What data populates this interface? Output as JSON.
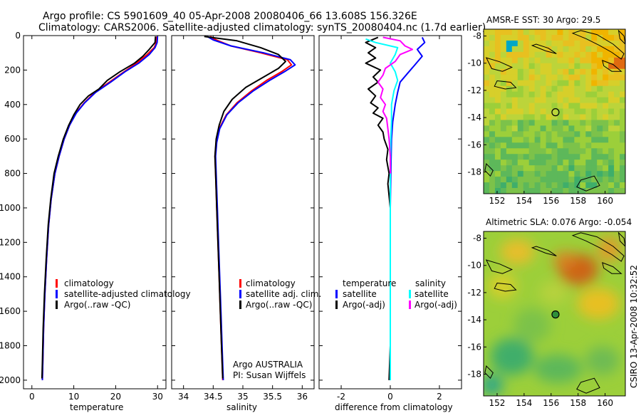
{
  "header": {
    "line1": "Argo profile: CS 5901609_40 05-Apr-2008 20080406_66 13.608S 156.326E",
    "line2": "Climatology: CARS2006. Satellite-adjusted climatology: synTS_20080404.nc (1.7d earlier)"
  },
  "side_text": "CSIRO 13-Apr-2008 10:32:52",
  "colors": {
    "clim": "#ff0000",
    "sat": "#0000ff",
    "argo": "#000000",
    "sal_sat": "#00ffff",
    "sal_argo": "#ff00ff"
  },
  "panels": {
    "temperature": {
      "xlabel": "temperature",
      "legend": [
        "climatology",
        "satellite-adjusted climatology",
        "Argo(..raw -QC)"
      ]
    },
    "salinity": {
      "xlabel": "salinity",
      "legend": [
        "climatology",
        "satellite adj. clim.",
        "Argo(..raw -QC)"
      ],
      "annot1": "Argo AUSTRALIA",
      "annot2": "PI: Susan Wijffels"
    },
    "difference": {
      "xlabel": "difference from climatology",
      "legend_head_left": "temperature",
      "legend_head_right": "salinity",
      "legend_left": [
        "satellite",
        "Argo(-adj)"
      ],
      "legend_right": [
        "satellite",
        "Argo(-adj)"
      ]
    }
  },
  "maps": {
    "sst": {
      "title": "AMSR-E SST: 30 Argo: 29.5"
    },
    "sla": {
      "title": "Altimetric SLA: 0.076 Argo: -0.054"
    },
    "float_position": {
      "lon": 156.326,
      "lat": -13.608
    }
  },
  "chart_data": [
    {
      "type": "line",
      "name": "temperature-profile",
      "xlabel": "temperature",
      "xlim": [
        -2,
        32
      ],
      "ylim": [
        2050,
        0
      ],
      "xticks": [
        0,
        10,
        20,
        30
      ],
      "yticks": [
        0,
        200,
        400,
        600,
        800,
        1000,
        1200,
        1400,
        1600,
        1800,
        2000
      ],
      "series": [
        {
          "name": "climatology",
          "color": "#ff0000",
          "points": [
            [
              29.8,
              5
            ],
            [
              29.7,
              40
            ],
            [
              29.2,
              70
            ],
            [
              27.5,
              110
            ],
            [
              25,
              160
            ],
            [
              22,
              210
            ],
            [
              18.5,
              270
            ],
            [
              15,
              330
            ],
            [
              12.5,
              390
            ],
            [
              10.5,
              450
            ],
            [
              9,
              520
            ],
            [
              7.7,
              600
            ],
            [
              6.5,
              700
            ],
            [
              5.5,
              800
            ],
            [
              4.6,
              950
            ],
            [
              4,
              1100
            ],
            [
              3.5,
              1300
            ],
            [
              3.1,
              1500
            ],
            [
              2.8,
              1700
            ],
            [
              2.6,
              1900
            ],
            [
              2.5,
              2000
            ]
          ]
        },
        {
          "name": "satellite-adjusted climatology",
          "color": "#0000ff",
          "points": [
            [
              30,
              5
            ],
            [
              29.9,
              40
            ],
            [
              29.4,
              70
            ],
            [
              28,
              110
            ],
            [
              25.5,
              160
            ],
            [
              22.2,
              210
            ],
            [
              18.8,
              270
            ],
            [
              15.2,
              330
            ],
            [
              12.6,
              390
            ],
            [
              10.6,
              450
            ],
            [
              9,
              520
            ],
            [
              7.7,
              600
            ],
            [
              6.5,
              700
            ],
            [
              5.5,
              800
            ],
            [
              4.6,
              950
            ],
            [
              4,
              1100
            ],
            [
              3.5,
              1300
            ],
            [
              3.1,
              1500
            ],
            [
              2.8,
              1700
            ],
            [
              2.6,
              1900
            ],
            [
              2.5,
              2000
            ]
          ]
        },
        {
          "name": "Argo(..raw -QC)",
          "color": "#000000",
          "points": [
            [
              29.5,
              5
            ],
            [
              29.4,
              40
            ],
            [
              28,
              80
            ],
            [
              26.5,
              120
            ],
            [
              24.5,
              160
            ],
            [
              21,
              210
            ],
            [
              18,
              260
            ],
            [
              16,
              310
            ],
            [
              13.5,
              350
            ],
            [
              11.5,
              400
            ],
            [
              10,
              460
            ],
            [
              8.8,
              520
            ],
            [
              7.5,
              600
            ],
            [
              6.3,
              700
            ],
            [
              5.3,
              800
            ],
            [
              4.5,
              950
            ],
            [
              3.9,
              1100
            ],
            [
              3.4,
              1300
            ],
            [
              3,
              1500
            ],
            [
              2.7,
              1700
            ],
            [
              2.5,
              1900
            ],
            [
              2.4,
              1990
            ]
          ]
        }
      ]
    },
    {
      "type": "line",
      "name": "salinity-profile",
      "xlabel": "salinity",
      "xlim": [
        33.8,
        36.2
      ],
      "ylim": [
        2050,
        0
      ],
      "xticks": [
        34,
        34.5,
        35,
        35.5,
        36
      ],
      "series": [
        {
          "name": "climatology",
          "color": "#ff0000",
          "points": [
            [
              34.45,
              5
            ],
            [
              34.55,
              25
            ],
            [
              34.8,
              60
            ],
            [
              35.3,
              100
            ],
            [
              35.75,
              140
            ],
            [
              35.82,
              170
            ],
            [
              35.65,
              210
            ],
            [
              35.4,
              260
            ],
            [
              35.15,
              320
            ],
            [
              34.9,
              390
            ],
            [
              34.72,
              460
            ],
            [
              34.6,
              540
            ],
            [
              34.55,
              620
            ],
            [
              34.53,
              700
            ],
            [
              34.54,
              800
            ],
            [
              34.56,
              1000
            ],
            [
              34.58,
              1200
            ],
            [
              34.6,
              1400
            ],
            [
              34.62,
              1600
            ],
            [
              34.64,
              1800
            ],
            [
              34.66,
              2000
            ]
          ]
        },
        {
          "name": "satellite adj. clim.",
          "color": "#0000ff",
          "points": [
            [
              34.4,
              5
            ],
            [
              34.5,
              25
            ],
            [
              34.8,
              60
            ],
            [
              35.35,
              100
            ],
            [
              35.8,
              140
            ],
            [
              35.88,
              170
            ],
            [
              35.7,
              210
            ],
            [
              35.45,
              260
            ],
            [
              35.18,
              320
            ],
            [
              34.92,
              390
            ],
            [
              34.73,
              460
            ],
            [
              34.61,
              540
            ],
            [
              34.56,
              620
            ],
            [
              34.54,
              700
            ],
            [
              34.55,
              800
            ],
            [
              34.57,
              1000
            ],
            [
              34.59,
              1200
            ],
            [
              34.61,
              1400
            ],
            [
              34.63,
              1600
            ],
            [
              34.65,
              1800
            ],
            [
              34.67,
              2000
            ]
          ]
        },
        {
          "name": "Argo(..raw -QC)",
          "color": "#000000",
          "points": [
            [
              34.35,
              5
            ],
            [
              34.9,
              30
            ],
            [
              35.3,
              70
            ],
            [
              35.6,
              110
            ],
            [
              35.72,
              150
            ],
            [
              35.6,
              190
            ],
            [
              35.35,
              240
            ],
            [
              35.05,
              300
            ],
            [
              34.82,
              370
            ],
            [
              34.68,
              440
            ],
            [
              34.6,
              520
            ],
            [
              34.55,
              600
            ],
            [
              34.53,
              700
            ],
            [
              34.54,
              800
            ],
            [
              34.56,
              1000
            ],
            [
              34.58,
              1200
            ],
            [
              34.6,
              1400
            ],
            [
              34.62,
              1600
            ],
            [
              34.64,
              1800
            ],
            [
              34.66,
              1990
            ]
          ]
        }
      ]
    },
    {
      "type": "line",
      "name": "difference-profile",
      "xlabel": "difference from climatology",
      "xlim": [
        -2.9,
        2.9
      ],
      "ylim": [
        2050,
        0
      ],
      "xticks": [
        -2,
        0,
        2
      ],
      "series": [
        {
          "name": "temperature satellite",
          "color": "#0000ff",
          "points": [
            [
              1.3,
              10
            ],
            [
              1.4,
              40
            ],
            [
              1.1,
              80
            ],
            [
              1.3,
              120
            ],
            [
              1.0,
              170
            ],
            [
              0.7,
              220
            ],
            [
              0.4,
              270
            ],
            [
              0.3,
              330
            ],
            [
              0.2,
              400
            ],
            [
              0.1,
              500
            ],
            [
              0.05,
              600
            ],
            [
              0.02,
              800
            ],
            [
              0,
              1000
            ],
            [
              0,
              1400
            ],
            [
              0,
              2000
            ]
          ]
        },
        {
          "name": "temperature Argo(-adj)",
          "color": "#000000",
          "points": [
            [
              -0.5,
              10
            ],
            [
              -1.0,
              40
            ],
            [
              -0.6,
              70
            ],
            [
              -0.9,
              100
            ],
            [
              -0.6,
              130
            ],
            [
              -1.0,
              160
            ],
            [
              -0.4,
              200
            ],
            [
              -0.7,
              240
            ],
            [
              -0.5,
              270
            ],
            [
              -0.9,
              310
            ],
            [
              -0.6,
              350
            ],
            [
              -0.8,
              390
            ],
            [
              -0.5,
              420
            ],
            [
              -0.7,
              450
            ],
            [
              -0.3,
              480
            ],
            [
              -0.5,
              520
            ],
            [
              -0.3,
              560
            ],
            [
              -0.25,
              600
            ],
            [
              -0.1,
              660
            ],
            [
              -0.15,
              720
            ],
            [
              -0.05,
              800
            ],
            [
              -0.1,
              860
            ],
            [
              0,
              1000
            ],
            [
              0,
              1400
            ],
            [
              0,
              1800
            ],
            [
              -0.05,
              2000
            ]
          ]
        },
        {
          "name": "salinity satellite",
          "color": "#00ffff",
          "points": [
            [
              -1.0,
              20
            ],
            [
              -0.6,
              40
            ],
            [
              0.3,
              70
            ],
            [
              0.2,
              110
            ],
            [
              0,
              160
            ],
            [
              0.2,
              210
            ],
            [
              0.3,
              260
            ],
            [
              0.15,
              320
            ],
            [
              0.05,
              400
            ],
            [
              0.05,
              500
            ],
            [
              0.02,
              600
            ],
            [
              0,
              800
            ],
            [
              0,
              1200
            ],
            [
              0,
              1600
            ],
            [
              0,
              2000
            ]
          ]
        },
        {
          "name": "salinity Argo(-adj)",
          "color": "#ff00ff",
          "points": [
            [
              -0.3,
              10
            ],
            [
              0.4,
              30
            ],
            [
              0.6,
              60
            ],
            [
              0.9,
              80
            ],
            [
              0.4,
              110
            ],
            [
              0.2,
              150
            ],
            [
              -0.2,
              190
            ],
            [
              -0.3,
              230
            ],
            [
              -0.5,
              270
            ],
            [
              -0.3,
              310
            ],
            [
              -0.4,
              360
            ],
            [
              -0.2,
              400
            ],
            [
              -0.3,
              440
            ],
            [
              -0.15,
              480
            ],
            [
              -0.1,
              540
            ],
            [
              -0.05,
              600
            ],
            [
              0,
              700
            ],
            [
              0,
              800
            ]
          ]
        }
      ]
    },
    {
      "type": "heatmap",
      "name": "sst-map",
      "title": "AMSR-E SST: 30 Argo: 29.5",
      "xlim": [
        151,
        161.5
      ],
      "ylim": [
        -19.6,
        -7.5
      ],
      "xticks": [
        152,
        154,
        156,
        158,
        160
      ],
      "yticks": [
        -8,
        -10,
        -12,
        -14,
        -16,
        -18
      ]
    },
    {
      "type": "heatmap",
      "name": "sla-map",
      "title": "Altimetric SLA: 0.076 Argo: -0.054",
      "xlim": [
        151,
        161.5
      ],
      "ylim": [
        -19.6,
        -7.5
      ],
      "xticks": [
        152,
        154,
        156,
        158,
        160
      ],
      "yticks": [
        -8,
        -10,
        -12,
        -14,
        -16,
        -18
      ]
    }
  ]
}
